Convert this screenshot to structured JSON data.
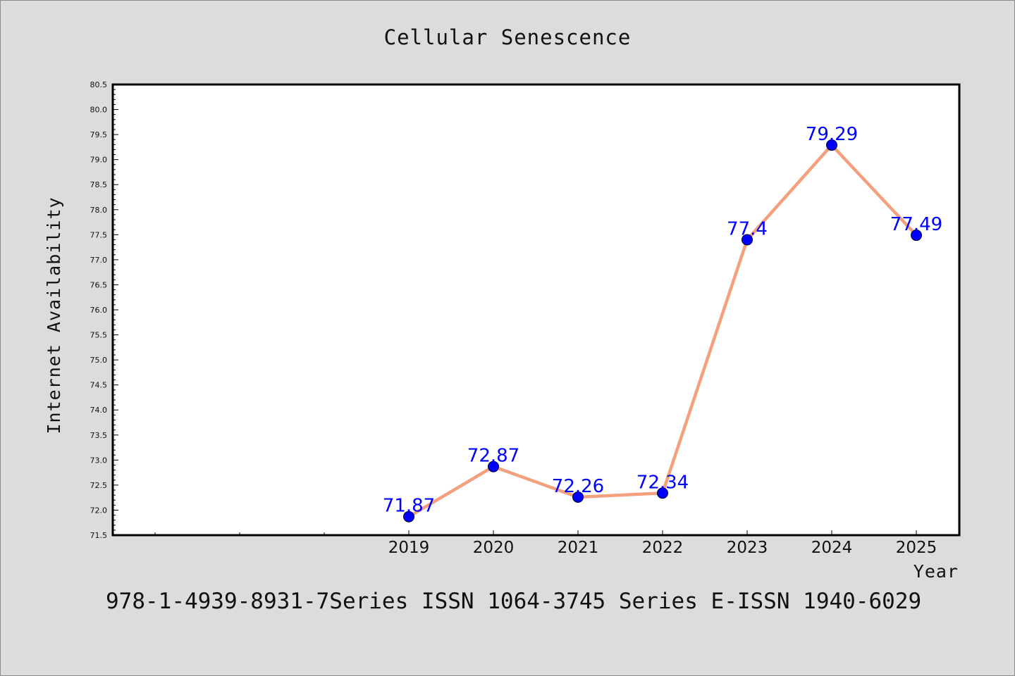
{
  "chart_data": {
    "type": "line",
    "title": "Cellular Senescence",
    "xlabel": "Year",
    "ylabel": "Internet Availability",
    "x": [
      "2019",
      "2020",
      "2021",
      "2022",
      "2023",
      "2024",
      "2025"
    ],
    "series": [
      {
        "values": [
          71.87,
          72.87,
          72.26,
          72.34,
          77.4,
          79.29,
          77.49
        ],
        "labels": [
          "71.87",
          "72.87",
          "72.26",
          "72.34",
          "77.4",
          "79.29",
          "77.49"
        ]
      }
    ],
    "ylim": [
      71.5,
      80.5
    ],
    "yticks": [
      "71.5",
      "72.0",
      "72.5",
      "73.0",
      "73.5",
      "74.0",
      "74.5",
      "75.0",
      "75.5",
      "76.0",
      "76.5",
      "77.0",
      "77.5",
      "78.0",
      "78.5",
      "79.0",
      "79.5",
      "80.0",
      "80.5"
    ],
    "line_color": "#f4a07e",
    "marker_color": "#0000ff",
    "label_color": "#0000ff",
    "grid": false,
    "legend": false
  },
  "footer": {
    "text": "978-1-4939-8931-7Series ISSN 1064-3745 Series E-ISSN 1940-6029"
  }
}
